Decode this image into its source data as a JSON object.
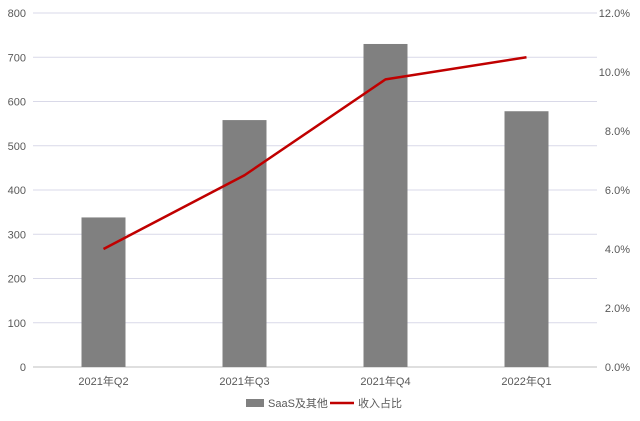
{
  "chart_data": {
    "type": "bar+line",
    "categories": [
      "2021年Q2",
      "2021年Q3",
      "2021年Q4",
      "2022年Q1"
    ],
    "series": [
      {
        "name": "SaaS及其他",
        "type": "bar",
        "axis": "left",
        "values": [
          338,
          558,
          730,
          578
        ],
        "color": "#808080"
      },
      {
        "name": "收入占比",
        "type": "line",
        "axis": "right",
        "values": [
          4.0,
          6.5,
          9.75,
          10.5
        ],
        "color": "#c00000"
      }
    ],
    "y_left": {
      "min": 0,
      "max": 800,
      "ticks": [
        0,
        100,
        200,
        300,
        400,
        500,
        600,
        700,
        800
      ],
      "tick_labels": [
        "0",
        "100",
        "200",
        "300",
        "400",
        "500",
        "600",
        "700",
        "800"
      ]
    },
    "y_right": {
      "min": 0,
      "max": 12,
      "ticks": [
        0,
        2,
        4,
        6,
        8,
        10,
        12
      ],
      "tick_labels": [
        "0.0%",
        "2.0%",
        "4.0%",
        "6.0%",
        "8.0%",
        "10.0%",
        "12.0%"
      ]
    },
    "grid": true,
    "legend_position": "bottom",
    "gridline_color": "#d9d9e8"
  }
}
